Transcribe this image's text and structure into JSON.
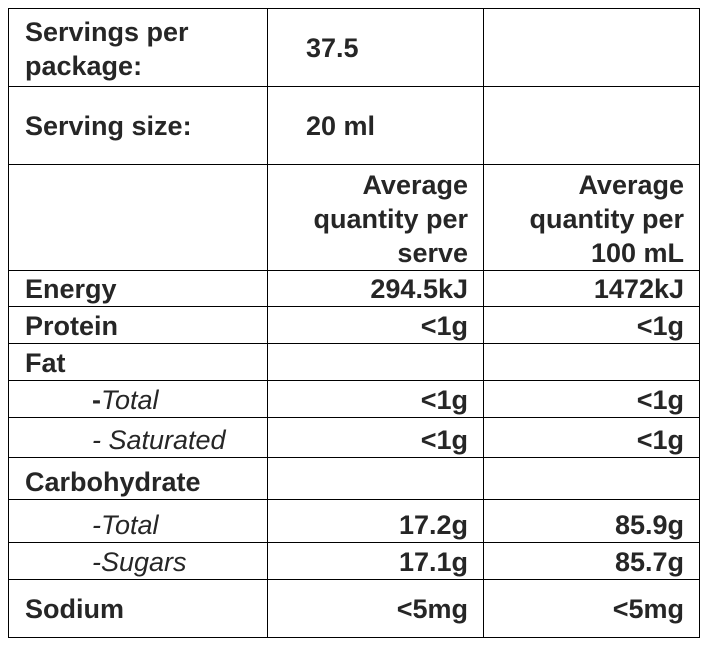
{
  "servings_per_package": {
    "label": "Servings per package:",
    "value": "37.5"
  },
  "serving_size": {
    "label": "Serving size:",
    "value": "20 ml"
  },
  "headers": {
    "per_serve": "Average quantity per serve",
    "per_100": "Average quantity per 100 mL"
  },
  "rows": {
    "energy": {
      "label": "Energy",
      "per_serve": "294.5kJ",
      "per_100": "1472kJ"
    },
    "protein": {
      "label": "Protein",
      "per_serve": "<1g",
      "per_100": "<1g"
    },
    "fat": {
      "label": "Fat"
    },
    "fat_total": {
      "dash": "-",
      "label": "Total",
      "per_serve": "<1g",
      "per_100": "<1g"
    },
    "fat_saturated": {
      "label": "- Saturated",
      "per_serve": "<1g",
      "per_100": "<1g"
    },
    "carbohydrate": {
      "label": "Carbohydrate"
    },
    "carb_total": {
      "label": "-Total",
      "per_serve": "17.2g",
      "per_100": "85.9g"
    },
    "carb_sugars": {
      "label": "-Sugars",
      "per_serve": "17.1g",
      "per_100": "85.7g"
    },
    "sodium": {
      "label": "Sodium",
      "per_serve": "<5mg",
      "per_100": "<5mg"
    }
  }
}
